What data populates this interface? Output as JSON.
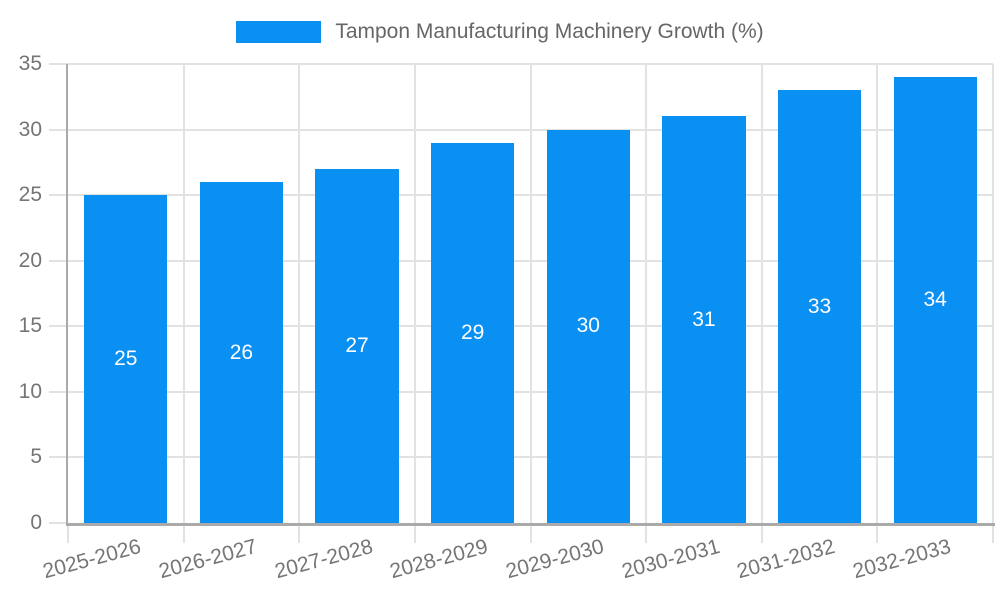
{
  "chart_data": {
    "type": "bar",
    "title": "Tampon Manufacturing Machinery Growth (%)",
    "categories": [
      "2025-2026",
      "2026-2027",
      "2027-2028",
      "2028-2029",
      "2029-2030",
      "2030-2031",
      "2031-2032",
      "2032-2033"
    ],
    "values": [
      25,
      26,
      27,
      29,
      30,
      31,
      33,
      34
    ],
    "xlabel": "",
    "ylabel": "",
    "ylim": [
      0,
      35
    ],
    "yticks": [
      0,
      5,
      10,
      15,
      20,
      25,
      30,
      35
    ],
    "grid": true,
    "legend_position": "top",
    "bar_labels_inside": true,
    "x_label_rotation_deg": -15,
    "colors": {
      "bar": "#0a8ff2",
      "bar_label": "#ffffff",
      "grid": "#e2e2e2",
      "axis": "#aaaaaa",
      "tick_text": "#757575",
      "legend_text": "#666666",
      "background": "#ffffff"
    }
  }
}
